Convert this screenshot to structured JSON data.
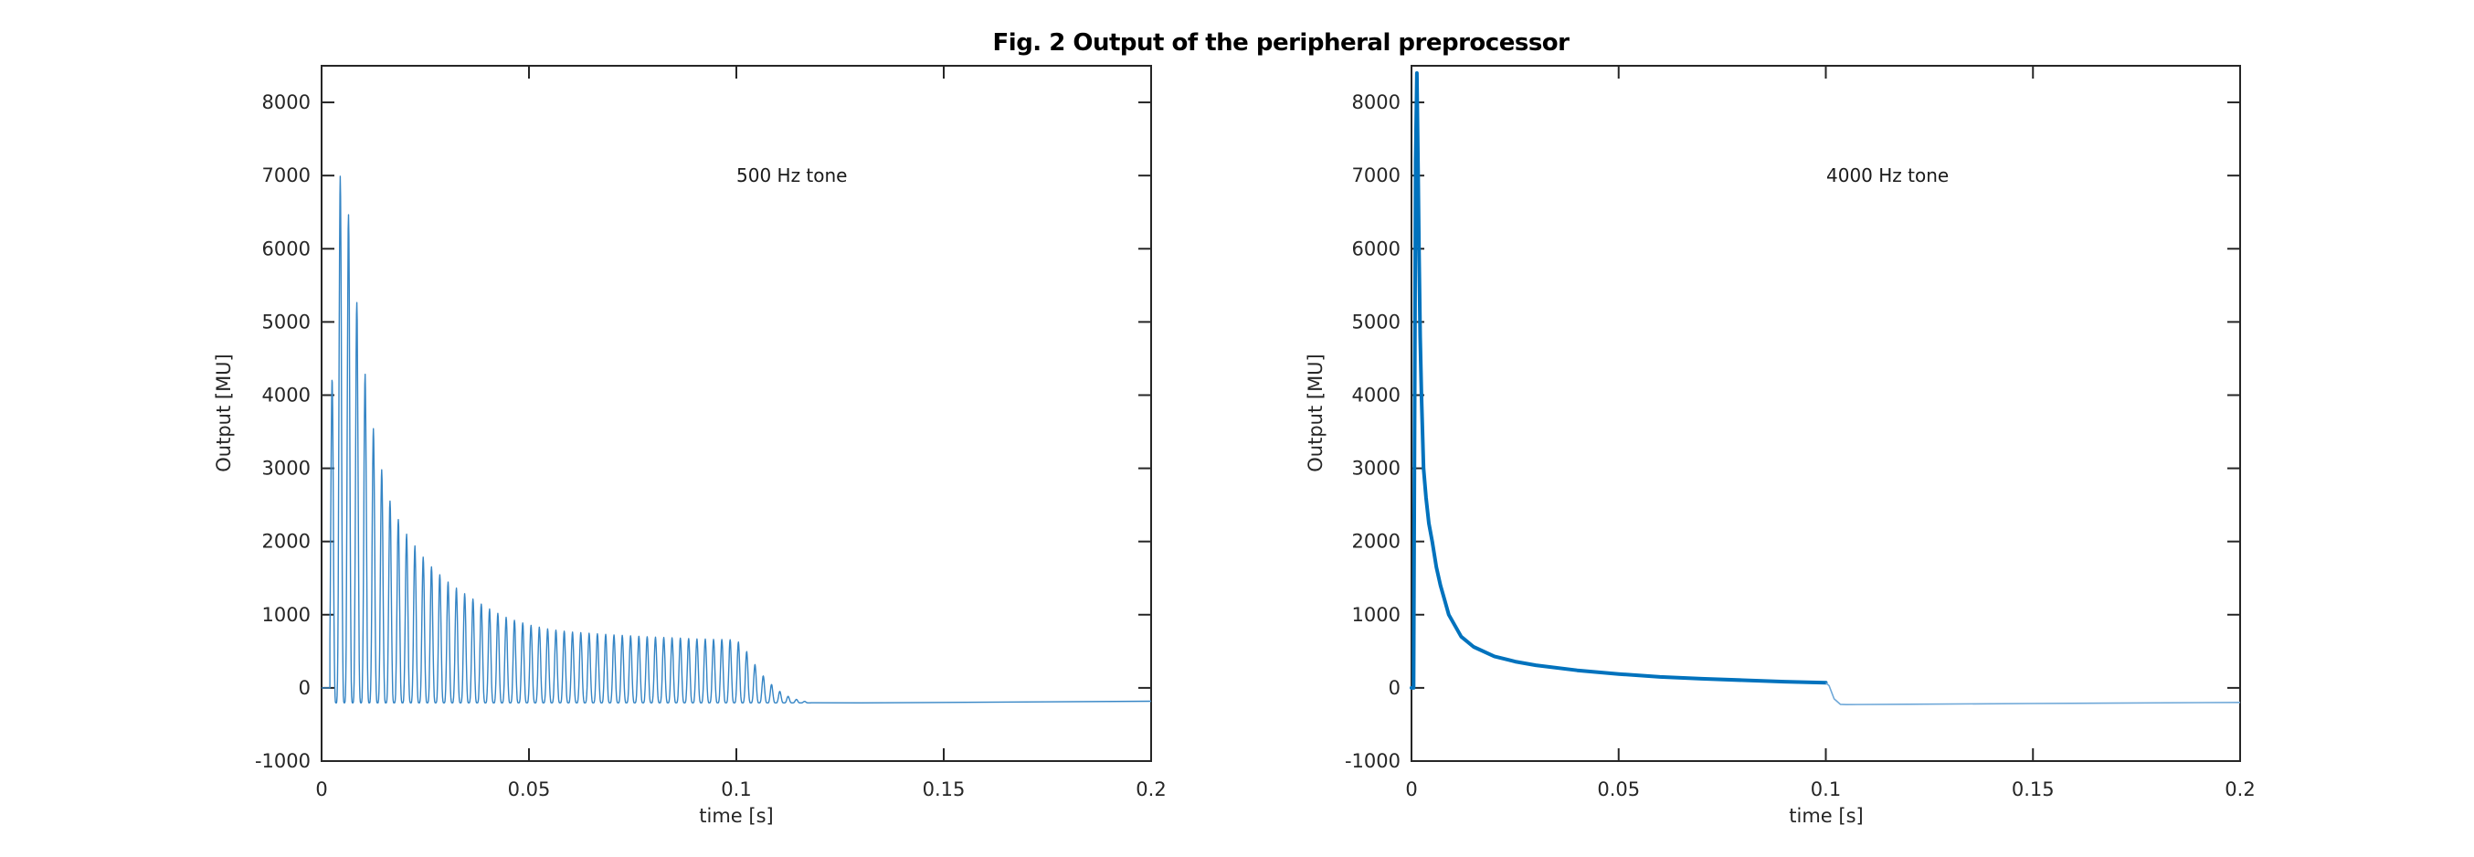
{
  "figure": {
    "title": "Fig. 2 Output of the peripheral preprocessor",
    "background": "#ffffff",
    "axis_color": "#262626",
    "colors": {
      "matlab_blue": "#0072BD",
      "thin_line_blue": "#3585C5",
      "tail_light_blue": "#6FA8D8"
    }
  },
  "chart_data": [
    {
      "type": "line",
      "annotation": "500 Hz tone",
      "xlabel": "time [s]",
      "ylabel": "Output [MU]",
      "xlim": [
        0,
        0.2
      ],
      "ylim": [
        -1000,
        8500
      ],
      "xticks": {
        "values": [
          0,
          0.05,
          0.1,
          0.15,
          0.2
        ],
        "labels": [
          "0",
          "0.05",
          "0.1",
          "0.15",
          "0.2"
        ]
      },
      "yticks": {
        "values": [
          -1000,
          0,
          1000,
          2000,
          3000,
          4000,
          5000,
          6000,
          7000,
          8000
        ],
        "labels": [
          "-1000",
          "0",
          "1000",
          "2000",
          "3000",
          "4000",
          "5000",
          "6000",
          "7000",
          "8000"
        ]
      },
      "signal": {
        "kind": "tone_burst",
        "tone_freq_hz": 500,
        "onset_s": 0.002,
        "offset_s": 0.1,
        "baseline_pre": 0,
        "trough_level": -205,
        "envelope_peaks": [
          [
            0.0022,
            3700
          ],
          [
            0.0042,
            7050
          ],
          [
            0.0062,
            6650
          ],
          [
            0.0081,
            5470
          ],
          [
            0.0101,
            4440
          ],
          [
            0.0121,
            3660
          ],
          [
            0.014,
            3100
          ],
          [
            0.016,
            2620
          ],
          [
            0.018,
            2350
          ],
          [
            0.0205,
            2100
          ],
          [
            0.024,
            1820
          ],
          [
            0.027,
            1620
          ],
          [
            0.031,
            1420
          ],
          [
            0.036,
            1230
          ],
          [
            0.041,
            1060
          ],
          [
            0.045,
            950
          ],
          [
            0.05,
            860
          ],
          [
            0.055,
            800
          ],
          [
            0.06,
            765
          ],
          [
            0.07,
            725
          ],
          [
            0.08,
            695
          ],
          [
            0.09,
            670
          ],
          [
            0.1,
            655
          ]
        ],
        "offset_ring": [
          [
            0.102,
            540
          ],
          [
            0.104,
            360
          ],
          [
            0.106,
            195
          ],
          [
            0.108,
            70
          ],
          [
            0.11,
            -30
          ],
          [
            0.112,
            -105
          ],
          [
            0.114,
            -150
          ],
          [
            0.116,
            -180
          ],
          [
            0.118,
            -200
          ]
        ],
        "tail": [
          [
            0.118,
            -203
          ],
          [
            0.13,
            -205
          ],
          [
            0.16,
            -196
          ],
          [
            0.2,
            -182
          ]
        ]
      }
    },
    {
      "type": "line",
      "annotation": "4000 Hz tone",
      "xlabel": "time [s]",
      "ylabel": "Output [MU]",
      "xlim": [
        0,
        0.2
      ],
      "ylim": [
        -1000,
        8500
      ],
      "xticks": {
        "values": [
          0,
          0.05,
          0.1,
          0.15,
          0.2
        ],
        "labels": [
          "0",
          "0.05",
          "0.1",
          "0.15",
          "0.2"
        ]
      },
      "yticks": {
        "values": [
          -1000,
          0,
          1000,
          2000,
          3000,
          4000,
          5000,
          6000,
          7000,
          8000
        ],
        "labels": [
          "-1000",
          "0",
          "1000",
          "2000",
          "3000",
          "4000",
          "5000",
          "6000",
          "7000",
          "8000"
        ]
      },
      "signal": {
        "kind": "envelope",
        "tone_freq_hz": 4000,
        "onset_s": 0.0005,
        "offset_s": 0.1,
        "peak_value": 8400,
        "points_main": [
          [
            0,
            0
          ],
          [
            0.0005,
            0
          ],
          [
            0.0007,
            3000
          ],
          [
            0.001,
            7200
          ],
          [
            0.0013,
            8400
          ],
          [
            0.0016,
            7000
          ],
          [
            0.0018,
            6000
          ],
          [
            0.0021,
            4800
          ],
          [
            0.0024,
            4000
          ],
          [
            0.0029,
            3000
          ],
          [
            0.0035,
            2600
          ],
          [
            0.0042,
            2250
          ],
          [
            0.005,
            2000
          ],
          [
            0.006,
            1650
          ],
          [
            0.007,
            1400
          ],
          [
            0.008,
            1200
          ],
          [
            0.009,
            1000
          ],
          [
            0.0105,
            850
          ],
          [
            0.012,
            700
          ],
          [
            0.015,
            560
          ],
          [
            0.02,
            430
          ],
          [
            0.025,
            360
          ],
          [
            0.03,
            310
          ],
          [
            0.04,
            240
          ],
          [
            0.05,
            190
          ],
          [
            0.06,
            150
          ],
          [
            0.07,
            125
          ],
          [
            0.08,
            105
          ],
          [
            0.09,
            85
          ],
          [
            0.1,
            70
          ]
        ],
        "points_tail": [
          [
            0.1,
            70
          ],
          [
            0.1008,
            30
          ],
          [
            0.102,
            -150
          ],
          [
            0.1035,
            -225
          ],
          [
            0.105,
            -228
          ],
          [
            0.12,
            -223
          ],
          [
            0.15,
            -213
          ],
          [
            0.2,
            -198
          ]
        ]
      }
    }
  ]
}
